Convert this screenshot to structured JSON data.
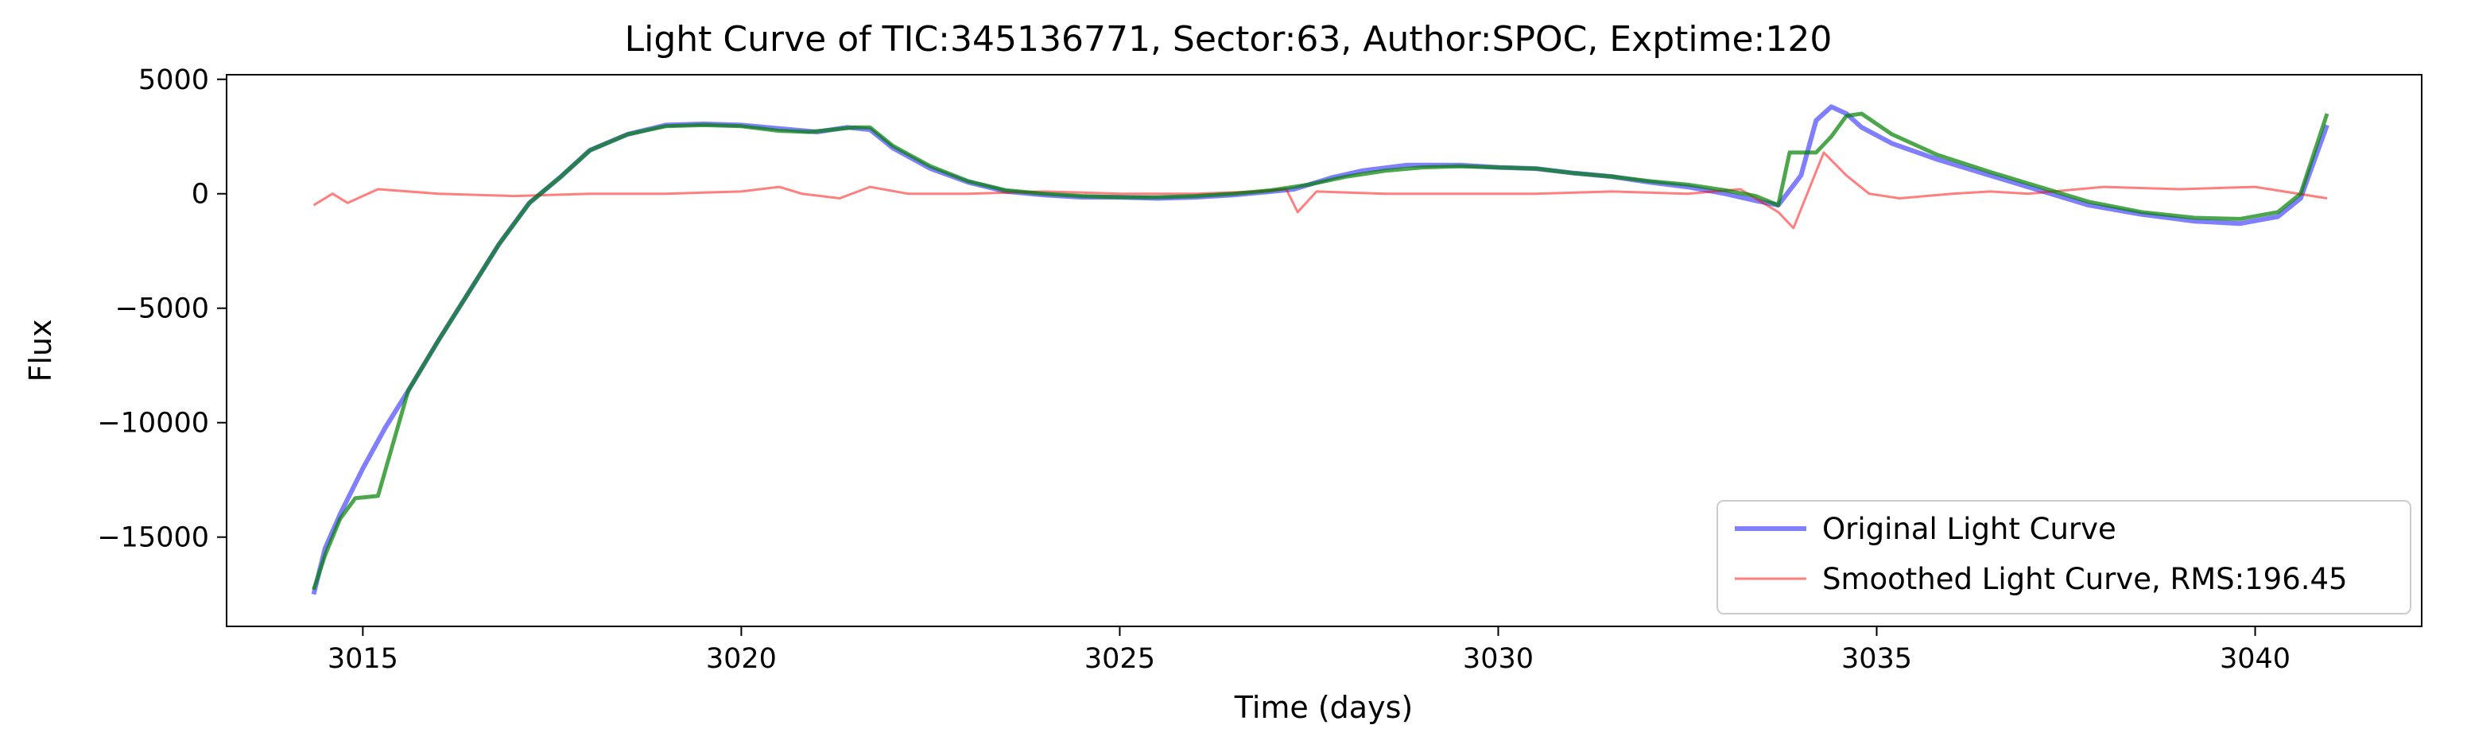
{
  "chart_data": {
    "type": "line",
    "title": "Light Curve of TIC:345136771, Sector:63, Author:SPOC, Exptime:120",
    "xlabel": "Time (days)",
    "ylabel": "Flux",
    "xlim": [
      3013.2,
      3042.2
    ],
    "ylim": [
      -18900,
      5200
    ],
    "xticks": [
      3015,
      3020,
      3025,
      3030,
      3035,
      3040
    ],
    "xtick_labels": [
      "3015",
      "3020",
      "3025",
      "3030",
      "3035",
      "3040"
    ],
    "yticks": [
      5000,
      0,
      -5000,
      -10000,
      -15000
    ],
    "ytick_labels": [
      "5000",
      "0",
      "−5000",
      "−10000",
      "−15000"
    ],
    "grid": false,
    "legend_position": "bottom-right",
    "series": [
      {
        "name": "Original Light Curve",
        "color": "#0000ff",
        "x": [
          3014.35,
          3014.5,
          3014.7,
          3015.0,
          3015.3,
          3015.6,
          3016.0,
          3016.4,
          3016.8,
          3017.2,
          3017.6,
          3018.0,
          3018.5,
          3019.0,
          3019.5,
          3020.0,
          3020.5,
          3021.0,
          3021.4,
          3021.7,
          3022.0,
          3022.5,
          3023.0,
          3023.5,
          3024.0,
          3024.5,
          3025.0,
          3025.5,
          3026.0,
          3026.5,
          3027.0,
          3027.3,
          3027.5,
          3027.8,
          3028.2,
          3028.8,
          3029.5,
          3030.0,
          3030.5,
          3031.0,
          3031.5,
          3032.0,
          3032.5,
          3033.0,
          3033.4,
          3033.7,
          3034.0,
          3034.2,
          3034.4,
          3034.6,
          3034.8,
          3035.2,
          3035.8,
          3036.5,
          3037.2,
          3037.8,
          3038.5,
          3039.2,
          3039.8,
          3040.3,
          3040.6,
          3040.95
        ],
        "y": [
          -17500,
          -15500,
          -14000,
          -12000,
          -10200,
          -8600,
          -6400,
          -4300,
          -2200,
          -400,
          700,
          1900,
          2600,
          3000,
          3050,
          3000,
          2850,
          2700,
          2900,
          2800,
          2000,
          1100,
          500,
          100,
          -50,
          -150,
          -150,
          -200,
          -150,
          -50,
          100,
          200,
          400,
          700,
          1000,
          1250,
          1250,
          1150,
          1100,
          900,
          750,
          500,
          300,
          0,
          -300,
          -500,
          800,
          3200,
          3800,
          3500,
          2900,
          2200,
          1500,
          800,
          100,
          -500,
          -900,
          -1200,
          -1300,
          -1000,
          -200,
          3000
        ]
      },
      {
        "name": "Smoothed Light Curve, RMS:196.45",
        "color": "#ff0000",
        "x": [
          3014.35,
          3014.6,
          3014.8,
          3015.2,
          3016.0,
          3017.0,
          3018.0,
          3019.0,
          3020.0,
          3020.5,
          3020.8,
          3021.3,
          3021.7,
          3022.2,
          3023.0,
          3024.0,
          3025.0,
          3026.0,
          3026.8,
          3027.2,
          3027.35,
          3027.6,
          3028.5,
          3029.5,
          3030.5,
          3031.5,
          3032.5,
          3033.2,
          3033.7,
          3033.9,
          3034.3,
          3034.6,
          3034.9,
          3035.3,
          3036.0,
          3036.5,
          3037.0,
          3038.0,
          3039.0,
          3040.0,
          3040.95
        ],
        "y": [
          -500,
          0,
          -400,
          200,
          0,
          -100,
          0,
          0,
          100,
          300,
          0,
          -200,
          300,
          0,
          0,
          100,
          0,
          0,
          100,
          200,
          -800,
          100,
          0,
          0,
          0,
          100,
          0,
          200,
          -800,
          -1500,
          1800,
          800,
          0,
          -200,
          0,
          100,
          0,
          300,
          200,
          300,
          -200
        ]
      },
      {
        "name": "",
        "color": "#008000",
        "x": [
          3014.35,
          3014.5,
          3014.7,
          3014.9,
          3015.2,
          3015.6,
          3016.0,
          3016.4,
          3016.8,
          3017.2,
          3017.6,
          3018.0,
          3018.5,
          3019.0,
          3019.5,
          3020.0,
          3020.5,
          3020.9,
          3021.2,
          3021.5,
          3021.7,
          3022.0,
          3022.5,
          3023.0,
          3023.5,
          3024.0,
          3024.5,
          3025.0,
          3025.5,
          3026.0,
          3026.5,
          3027.0,
          3027.5,
          3028.0,
          3028.5,
          3029.0,
          3029.5,
          3030.0,
          3030.5,
          3031.0,
          3031.5,
          3032.0,
          3032.5,
          3033.0,
          3033.4,
          3033.7,
          3033.85,
          3034.2,
          3034.4,
          3034.6,
          3034.8,
          3035.2,
          3035.8,
          3036.5,
          3037.2,
          3037.8,
          3038.5,
          3039.2,
          3039.8,
          3040.3,
          3040.6,
          3040.95
        ],
        "y": [
          -17300,
          -15800,
          -14200,
          -13300,
          -13200,
          -8600,
          -6400,
          -4300,
          -2200,
          -400,
          700,
          1900,
          2600,
          2950,
          3000,
          2950,
          2750,
          2700,
          2800,
          2900,
          2900,
          2100,
          1200,
          550,
          150,
          0,
          -100,
          -150,
          -150,
          -100,
          0,
          150,
          400,
          750,
          1000,
          1150,
          1200,
          1150,
          1100,
          900,
          750,
          550,
          400,
          150,
          -100,
          -500,
          1800,
          1800,
          2500,
          3400,
          3500,
          2600,
          1700,
          950,
          250,
          -350,
          -800,
          -1050,
          -1100,
          -800,
          0,
          3500
        ]
      }
    ]
  }
}
